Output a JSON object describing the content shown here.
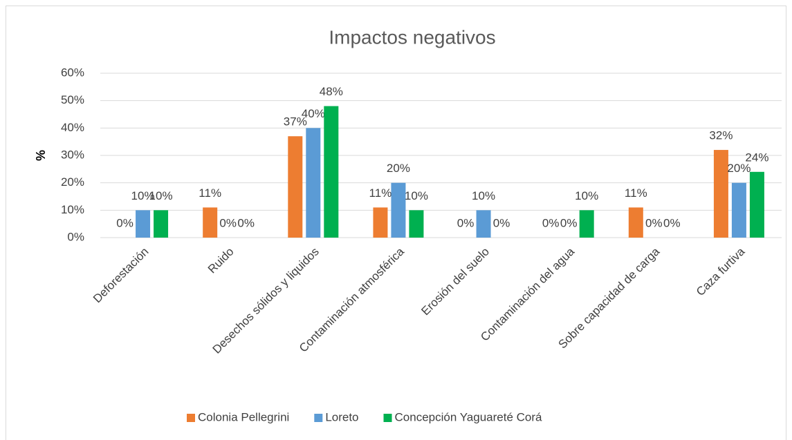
{
  "chart_data": {
    "type": "bar",
    "title": "Impactos negativos",
    "y_label": "%",
    "categories": [
      "Deforestación",
      "Ruido",
      "Desechos sólidos y liquidos",
      "Contaminación atmosférica",
      "Erosión del suelo",
      "Contaminación del agua",
      "Sobre capacidad de carga",
      "Caza furtiva"
    ],
    "series": [
      {
        "name": "Colonia Pellegrini",
        "color": "#ed7d31",
        "values": [
          0,
          11,
          37,
          11,
          0,
          0,
          11,
          32
        ],
        "value_labels": [
          "0%",
          "11%",
          "37%",
          "11%",
          "0%",
          "0%",
          "11%",
          "32%"
        ]
      },
      {
        "name": "Loreto",
        "color": "#5b9bd5",
        "values": [
          10,
          0,
          40,
          20,
          10,
          0,
          0,
          20
        ],
        "value_labels": [
          "10%",
          "0%",
          "40%",
          "20%",
          "10%",
          "0%",
          "0%",
          "20%"
        ]
      },
      {
        "name": "Concepción Yaguareté Corá",
        "color": "#00b050",
        "values": [
          10,
          0,
          48,
          10,
          0,
          10,
          0,
          24
        ],
        "value_labels": [
          "10%",
          "0%",
          "48%",
          "10%",
          "0%",
          "10%",
          "0%",
          "24%"
        ]
      }
    ],
    "ylim": [
      0,
      60
    ],
    "yticks": [
      {
        "value": 0,
        "label": "0%"
      },
      {
        "value": 10,
        "label": "10%"
      },
      {
        "value": 20,
        "label": "20%"
      },
      {
        "value": 30,
        "label": "30%"
      },
      {
        "value": 40,
        "label": "40%"
      },
      {
        "value": 50,
        "label": "50%"
      },
      {
        "value": 60,
        "label": "60%"
      }
    ],
    "grid": true,
    "legend": "bottom"
  }
}
